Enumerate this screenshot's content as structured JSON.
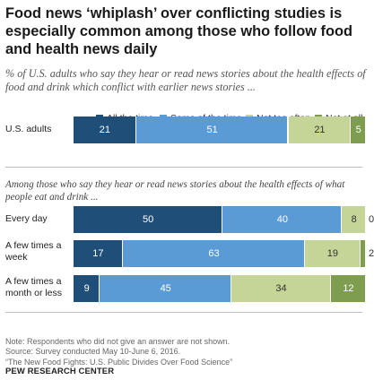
{
  "chart_data": {
    "type": "bar",
    "orientation": "horizontal",
    "stacked": true,
    "title": "Food news ‘whiplash’ over conflicting studies is especially common among those who follow food and health news daily",
    "subtitle": "% of U.S. adults who say they hear or read news stories about the health effects of food and drink which conflict with earlier news stories ...",
    "subgroup_heading": "Among those who say they hear or read news stories about the health effects of what people eat and drink ...",
    "legend_position": "top",
    "series": [
      {
        "name": "All the time",
        "color": "#1f4e79"
      },
      {
        "name": "Some of the time",
        "color": "#5b9bd5"
      },
      {
        "name": "Not too often",
        "color": "#c5d597"
      },
      {
        "name": "Not at all",
        "color": "#7e9d4f"
      }
    ],
    "rows": [
      {
        "label": "U.S. adults",
        "values": [
          21,
          51,
          21,
          5
        ]
      },
      {
        "label": "Every day",
        "values": [
          50,
          40,
          8,
          0
        ]
      },
      {
        "label": "A few times a week",
        "values": [
          17,
          63,
          19,
          2
        ]
      },
      {
        "label": "A few times a month or less",
        "values": [
          9,
          45,
          34,
          12
        ]
      }
    ],
    "notes": [
      "Note: Respondents who did not give an answer are not shown.",
      "Source: Survey conducted May 10-June 6, 2016.",
      "“The New Food Fights: U.S. Public Divides Over Food Science”"
    ],
    "source_org": "PEW RESEARCH CENTER"
  }
}
